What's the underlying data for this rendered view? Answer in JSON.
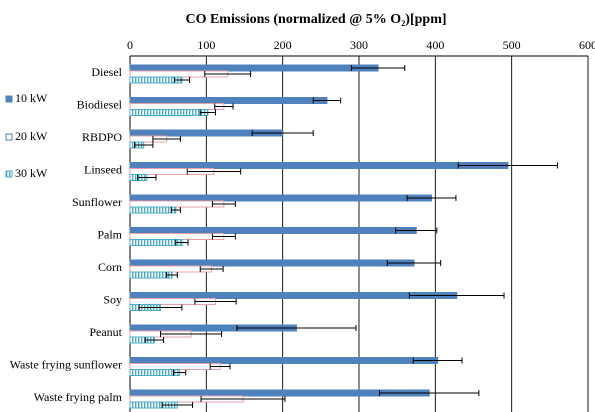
{
  "chart_data": {
    "type": "bar",
    "orientation": "horizontal",
    "title": "CO Emissions (normalized @ 5% O₂)[ppm]",
    "xlim": [
      0,
      600
    ],
    "xticks": [
      0,
      100,
      200,
      300,
      400,
      500,
      600
    ],
    "grid": "vertical",
    "legend_position": "left",
    "categories": [
      "Diesel",
      "Biodiesel",
      "RBDPO",
      "Linseed",
      "Sunflower",
      "Palm",
      "Corn",
      "Soy",
      "Peanut",
      "Waste frying sunflower",
      "Waste frying palm"
    ],
    "series": [
      {
        "name": "10 kW",
        "color": "#4f81bd",
        "pattern": "solid",
        "values": [
          325,
          258,
          200,
          495,
          395,
          375,
          372,
          428,
          218,
          403,
          392
        ],
        "errors": [
          35,
          18,
          40,
          65,
          32,
          27,
          35,
          62,
          78,
          32,
          65
        ]
      },
      {
        "name": "20 kW",
        "color": "#e6a0a8",
        "pattern": "outline",
        "values": [
          128,
          123,
          48,
          110,
          123,
          123,
          107,
          112,
          80,
          118,
          148
        ],
        "errors": [
          30,
          12,
          18,
          35,
          15,
          15,
          15,
          27,
          40,
          13,
          55
        ]
      },
      {
        "name": "30 kW",
        "color": "#4bacc6",
        "pattern": "vertical-stripes",
        "values": [
          68,
          102,
          18,
          22,
          60,
          68,
          55,
          40,
          32,
          65,
          62
        ],
        "errors": [
          10,
          10,
          12,
          12,
          6,
          8,
          7,
          28,
          12,
          8,
          20
        ]
      }
    ]
  }
}
